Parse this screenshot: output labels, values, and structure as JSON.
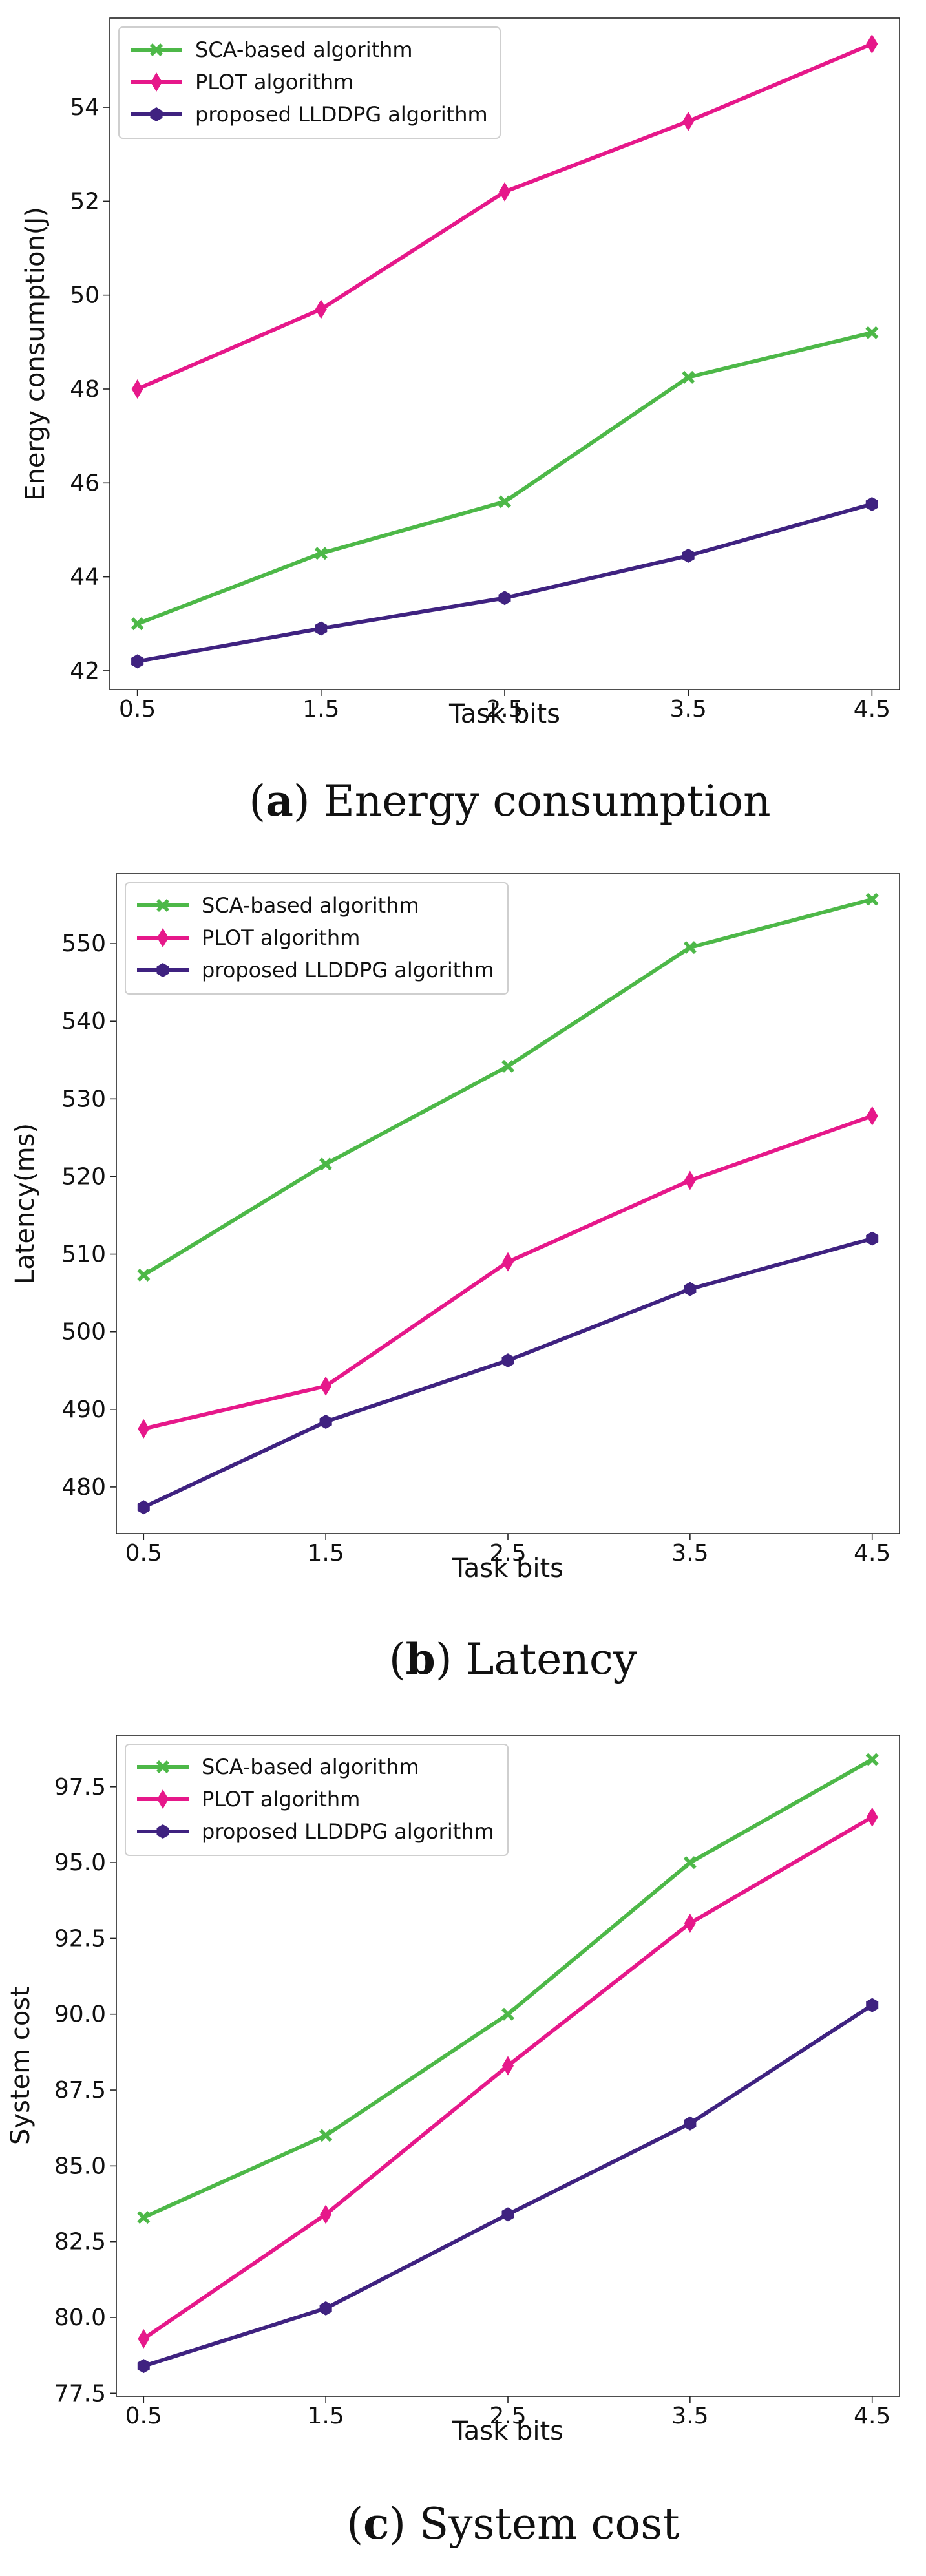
{
  "chart_data": [
    {
      "type": "line",
      "xlabel": "Task bits",
      "ylabel": "Energy consumption(J)",
      "x": [
        0.5,
        1.5,
        2.5,
        3.5,
        4.5
      ],
      "x_ticks": [
        "0.5",
        "1.5",
        "2.5",
        "3.5",
        "4.5"
      ],
      "y_ticks": [
        42,
        44,
        46,
        48,
        50,
        52,
        54
      ],
      "y_tick_labels": [
        "42",
        "44",
        "46",
        "48",
        "50",
        "52",
        "54"
      ],
      "xlim": [
        0.35,
        4.65
      ],
      "ylim": [
        41.6,
        55.9
      ],
      "legend_position": "upper-left",
      "caption_letter": "a",
      "caption_text": "Energy consumption",
      "series": [
        {
          "name": "SCA-based algorithm",
          "color": "#4db848",
          "marker": "x-filled",
          "values": [
            43.0,
            44.5,
            45.6,
            48.25,
            49.2
          ]
        },
        {
          "name": "PLOT algorithm",
          "color": "#e6188a",
          "marker": "thin-diamond",
          "values": [
            48.0,
            49.7,
            52.2,
            53.7,
            55.35
          ]
        },
        {
          "name": "proposed LLDDPG algorithm",
          "color": "#3f2280",
          "marker": "hexagon",
          "values": [
            42.2,
            42.9,
            43.55,
            44.45,
            45.55
          ]
        }
      ]
    },
    {
      "type": "line",
      "xlabel": "Task bits",
      "ylabel": "Latency(ms)",
      "x": [
        0.5,
        1.5,
        2.5,
        3.5,
        4.5
      ],
      "x_ticks": [
        "0.5",
        "1.5",
        "2.5",
        "3.5",
        "4.5"
      ],
      "y_ticks": [
        480,
        490,
        500,
        510,
        520,
        530,
        540,
        550
      ],
      "y_tick_labels": [
        "480",
        "490",
        "500",
        "510",
        "520",
        "530",
        "540",
        "550"
      ],
      "xlim": [
        0.35,
        4.65
      ],
      "ylim": [
        474.0,
        559.0
      ],
      "legend_position": "upper-left",
      "caption_letter": "b",
      "caption_text": "Latency",
      "series": [
        {
          "name": "SCA-based algorithm",
          "color": "#4db848",
          "marker": "x-filled",
          "values": [
            507.3,
            521.6,
            534.2,
            549.5,
            555.7
          ]
        },
        {
          "name": "PLOT algorithm",
          "color": "#e6188a",
          "marker": "thin-diamond",
          "values": [
            487.5,
            493.0,
            509.0,
            519.5,
            527.8
          ]
        },
        {
          "name": "proposed LLDDPG algorithm",
          "color": "#3f2280",
          "marker": "hexagon",
          "values": [
            477.4,
            488.4,
            496.3,
            505.5,
            512.0
          ]
        }
      ]
    },
    {
      "type": "line",
      "xlabel": "Task bits",
      "ylabel": "System cost",
      "x": [
        0.5,
        1.5,
        2.5,
        3.5,
        4.5
      ],
      "x_ticks": [
        "0.5",
        "1.5",
        "2.5",
        "3.5",
        "4.5"
      ],
      "y_ticks": [
        77.5,
        80.0,
        82.5,
        85.0,
        87.5,
        90.0,
        92.5,
        95.0,
        97.5
      ],
      "y_tick_labels": [
        "77.5",
        "80.0",
        "82.5",
        "85.0",
        "87.5",
        "90.0",
        "92.5",
        "95.0",
        "97.5"
      ],
      "xlim": [
        0.35,
        4.65
      ],
      "ylim": [
        77.4,
        99.2
      ],
      "legend_position": "upper-left",
      "caption_letter": "c",
      "caption_text": "System cost",
      "series": [
        {
          "name": "SCA-based algorithm",
          "color": "#4db848",
          "marker": "x-filled",
          "values": [
            83.3,
            86.0,
            90.0,
            95.0,
            98.4
          ]
        },
        {
          "name": "PLOT algorithm",
          "color": "#e6188a",
          "marker": "thin-diamond",
          "values": [
            79.3,
            83.4,
            88.3,
            93.0,
            96.5
          ]
        },
        {
          "name": "proposed LLDDPG algorithm",
          "color": "#3f2280",
          "marker": "hexagon",
          "values": [
            78.4,
            80.3,
            83.4,
            86.4,
            90.3
          ]
        }
      ]
    }
  ]
}
